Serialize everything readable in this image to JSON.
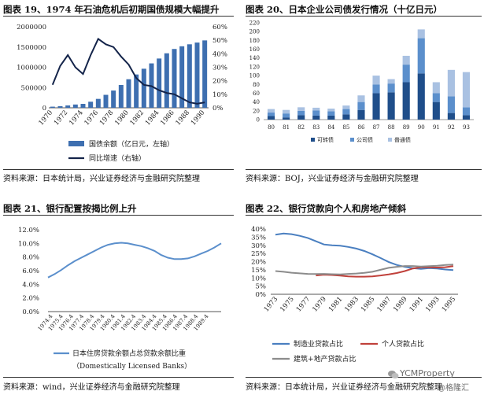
{
  "panels": [
    {
      "title": "图表 19、1974 年石油危机后初期国债规模大幅提升",
      "source": "资料来源：日本统计局，兴业证券经济与金融研究院整理"
    },
    {
      "title": "图表 20、日本企业公司债发行情况（十亿日元）",
      "source": "资料来源：BOJ，兴业证券经济与金融研究院整理"
    },
    {
      "title": "图表 21、银行配置按揭比例上升",
      "source": "资料来源：wind，兴业证券经济与金融研究院整理"
    },
    {
      "title": "图表 22、银行贷款向个人和房地产倾斜",
      "source": "资料来源：日本统计局，兴业证券经济与金融研究院整理"
    }
  ],
  "watermark": {
    "text1": "YCMProperty",
    "text2": "@格隆汇"
  },
  "chart_data": [
    {
      "type": "bar",
      "categories": [
        "1970",
        "1971",
        "1972",
        "1973",
        "1974",
        "1975",
        "1976",
        "1977",
        "1978",
        "1979",
        "1980",
        "1981",
        "1982",
        "1983",
        "1984",
        "1985",
        "1986",
        "1987",
        "1988",
        "1989",
        "1990"
      ],
      "x_tick_labels": [
        "1970",
        "1972",
        "1974",
        "1976",
        "1978",
        "1980",
        "1982",
        "1984",
        "1986",
        "1988",
        "1990"
      ],
      "series": [
        {
          "name": "国债余额（亿日元，左轴）",
          "type": "bar",
          "axis": "left",
          "color": "#3e6fb0",
          "values": [
            28000,
            39000,
            58000,
            81000,
            97000,
            150000,
            220000,
            320000,
            426000,
            563000,
            705000,
            822000,
            964000,
            1096000,
            1216000,
            1345000,
            1452000,
            1518000,
            1567000,
            1610000,
            1663000
          ]
        },
        {
          "name": "同比增速（右轴）",
          "type": "line",
          "axis": "right",
          "color": "#14244a",
          "values": [
            0.17,
            0.31,
            0.39,
            0.3,
            0.25,
            0.39,
            0.51,
            0.47,
            0.45,
            0.38,
            0.32,
            0.22,
            0.17,
            0.16,
            0.13,
            0.11,
            0.1,
            0.07,
            0.04,
            0.03,
            0.04
          ]
        }
      ],
      "ylim_left": [
        0,
        2000000
      ],
      "yticks_left": [
        "0",
        "500000",
        "1000000",
        "1500000",
        "2000000"
      ],
      "ylim_right": [
        0,
        0.6
      ],
      "yticks_right": [
        "0%",
        "10%",
        "20%",
        "30%",
        "40%",
        "50%",
        "60%"
      ],
      "legend": "bottom"
    },
    {
      "type": "bar",
      "stacked": true,
      "categories": [
        "80",
        "81",
        "82",
        "83",
        "84",
        "85",
        "86",
        "87",
        "88",
        "89",
        "90",
        "91",
        "92",
        "93"
      ],
      "series": [
        {
          "name": "可转债",
          "color": "#1f4e8a",
          "values": [
            8,
            5,
            10,
            9,
            9,
            12,
            22,
            60,
            62,
            85,
            105,
            40,
            15,
            10
          ]
        },
        {
          "name": "公司债",
          "color": "#5b8fcc",
          "values": [
            8,
            9,
            10,
            12,
            10,
            12,
            18,
            20,
            20,
            40,
            80,
            20,
            38,
            18
          ]
        },
        {
          "name": "普通债",
          "color": "#a9c1e2",
          "values": [
            8,
            8,
            8,
            6,
            6,
            8,
            15,
            20,
            10,
            20,
            20,
            25,
            60,
            80
          ]
        }
      ],
      "ylim": [
        0,
        220
      ],
      "yticks": [
        "0",
        "20",
        "40",
        "60",
        "80",
        "100",
        "120",
        "140",
        "160",
        "180",
        "200",
        "220"
      ],
      "legend": "bottom"
    },
    {
      "type": "line",
      "x_tick_labels": [
        "1974.4",
        "1975.4",
        "1976.4",
        "1977.4",
        "1978.4",
        "1979.4",
        "1980.4",
        "1981.4",
        "1982.4",
        "1983.4",
        "1984.4",
        "1985.4",
        "1986.4",
        "1987.4",
        "1988.4",
        "1989.4"
      ],
      "series": [
        {
          "name": "日本住房贷款余额占总贷款余额比重",
          "color": "#5b8fcc",
          "values": [
            0.05,
            0.055,
            0.061,
            0.068,
            0.074,
            0.079,
            0.084,
            0.089,
            0.094,
            0.098,
            0.1,
            0.101,
            0.1,
            0.098,
            0.096,
            0.093,
            0.089,
            0.083,
            0.079,
            0.077,
            0.077,
            0.078,
            0.081,
            0.085,
            0.089,
            0.094,
            0.1
          ]
        }
      ],
      "legend_subtitle": "（Domestically Licensed Banks）",
      "ylim": [
        0.0,
        0.12
      ],
      "yticks": [
        "0.0%",
        "2.0%",
        "4.0%",
        "6.0%",
        "8.0%",
        "10.0%",
        "12.0%"
      ],
      "legend": "bottom"
    },
    {
      "type": "line",
      "x": [
        1973,
        1974,
        1975,
        1976,
        1977,
        1978,
        1979,
        1980,
        1981,
        1982,
        1983,
        1984,
        1985,
        1986,
        1987,
        1988,
        1989,
        1990,
        1991,
        1992,
        1993,
        1994,
        1995
      ],
      "x_tick_labels": [
        "1973",
        "1975",
        "1977",
        "1979",
        "1981",
        "1983",
        "1985",
        "1987",
        "1989",
        "1991",
        "1993",
        "1995"
      ],
      "series": [
        {
          "name": "制造业贷款占比",
          "color": "#4a7fc0",
          "values": [
            0.365,
            0.372,
            0.368,
            0.358,
            0.345,
            0.325,
            0.305,
            0.3,
            0.298,
            0.29,
            0.28,
            0.265,
            0.245,
            0.222,
            0.198,
            0.18,
            0.168,
            0.16,
            0.155,
            0.16,
            0.158,
            0.152,
            0.148
          ]
        },
        {
          "name": "个人贷款占比",
          "color": "#c0413b",
          "values": [
            null,
            null,
            null,
            null,
            null,
            0.115,
            0.12,
            0.118,
            0.114,
            0.11,
            0.108,
            0.108,
            0.11,
            0.115,
            0.122,
            0.13,
            0.142,
            0.158,
            0.165,
            0.166,
            0.164,
            0.166,
            0.172
          ]
        },
        {
          "name": "建筑+地产贷款占比",
          "color": "#8c8c8c",
          "values": [
            0.142,
            0.138,
            0.132,
            0.128,
            0.125,
            0.124,
            0.125,
            0.123,
            0.122,
            0.125,
            0.127,
            0.131,
            0.138,
            0.15,
            0.162,
            0.168,
            0.173,
            0.173,
            0.17,
            0.172,
            0.175,
            0.18,
            0.182
          ]
        }
      ],
      "ylim": [
        0,
        0.4
      ],
      "yticks": [
        "0%",
        "5%",
        "10%",
        "15%",
        "20%",
        "25%",
        "30%",
        "35%",
        "40%"
      ],
      "legend": "bottom"
    }
  ]
}
